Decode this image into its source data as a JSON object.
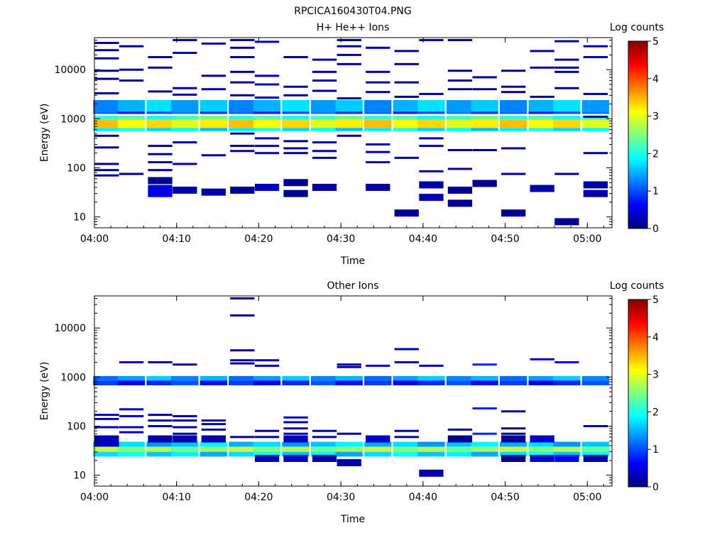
{
  "title": "RPCICA160430T04.PNG",
  "colormap": [
    "#00007f",
    "#0000ff",
    "#007fff",
    "#00ffff",
    "#7fff7f",
    "#ffff00",
    "#ff7f00",
    "#ff0000",
    "#7f0000"
  ],
  "chart_data": [
    {
      "type": "heatmap",
      "title": "H+ He++ Ions",
      "xlabel": "Time",
      "ylabel": "Energy (eV)",
      "x_ticks": [
        "04:00",
        "04:10",
        "04:20",
        "04:30",
        "04:40",
        "04:50",
        "05:00"
      ],
      "x_range": [
        "04:00",
        "05:03"
      ],
      "y_scale": "log",
      "y_range": [
        6,
        45000
      ],
      "y_ticks": [
        "10",
        "100",
        "1000",
        "10000"
      ],
      "colorbar": {
        "label": "Log counts",
        "range": [
          0,
          5
        ],
        "ticks": [
          "0",
          "1",
          "2",
          "3",
          "4",
          "5"
        ]
      },
      "time_bins": [
        "04:01.5",
        "04:04.5",
        "04:08",
        "04:11",
        "04:14.5",
        "04:18",
        "04:21",
        "04:24.5",
        "04:28",
        "04:31",
        "04:34.5",
        "04:38",
        "04:41",
        "04:44.5",
        "04:47.5",
        "04:51",
        "04:54.5",
        "04:57.5",
        "05:01"
      ],
      "bands": [
        {
          "e_low": 1400,
          "e_high": 2400,
          "level": 1.5
        },
        {
          "e_low": 1250,
          "e_high": 1400,
          "level": 1.0
        },
        {
          "e_low": 950,
          "e_high": 1150,
          "level": 2.2
        },
        {
          "e_low": 650,
          "e_high": 950,
          "level": 3.2
        },
        {
          "e_low": 560,
          "e_high": 650,
          "level": 1.8
        }
      ],
      "sparse": [
        {
          "col": 0,
          "e": [
            35000,
            25000,
            17000,
            9500,
            6500,
            3300,
            450,
            260,
            120,
            90,
            70
          ],
          "level": 0.1
        },
        {
          "col": 1,
          "e": [
            30000,
            10000,
            6000,
            75
          ],
          "level": 0.1
        },
        {
          "col": 2,
          "e": [
            18000,
            11000,
            3600,
            280,
            190,
            130,
            90,
            55
          ],
          "level": 0.1
        },
        {
          "col": 2,
          "e": [
            38,
            30
          ],
          "level": 0.5
        },
        {
          "col": 3,
          "e": [
            40000,
            22000,
            4200,
            3100,
            330,
            120,
            35
          ],
          "level": 0.2
        },
        {
          "col": 4,
          "e": [
            34000,
            7500,
            4000,
            180,
            32
          ],
          "level": 0.2
        },
        {
          "col": 5,
          "e": [
            40000,
            28000,
            18000,
            9000,
            5500,
            3000,
            500,
            280,
            220,
            35
          ],
          "level": 0.1
        },
        {
          "col": 6,
          "e": [
            37000,
            7500,
            5000,
            2700,
            400,
            280,
            200,
            40
          ],
          "level": 0.3
        },
        {
          "col": 7,
          "e": [
            18000,
            4500,
            3000,
            350,
            250,
            200,
            50,
            30
          ],
          "level": 0.1
        },
        {
          "col": 8,
          "e": [
            16000,
            9000,
            6000,
            3700,
            330,
            220,
            160,
            40
          ],
          "level": 0.2
        },
        {
          "col": 9,
          "e": [
            40000,
            30000,
            20000,
            13000,
            2600,
            450
          ],
          "level": 0.1
        },
        {
          "col": 10,
          "e": [
            28000,
            9000,
            5500,
            3500,
            300,
            210,
            130,
            40
          ],
          "level": 0.2
        },
        {
          "col": 11,
          "e": [
            24000,
            13000,
            5500,
            2800,
            160,
            12
          ],
          "level": 0.1
        },
        {
          "col": 12,
          "e": [
            40000,
            3200,
            400,
            280,
            85,
            45,
            25
          ],
          "level": 0.2
        },
        {
          "col": 13,
          "e": [
            40000,
            9500,
            6000,
            4000,
            230,
            95,
            35,
            19
          ],
          "level": 0.1
        },
        {
          "col": 14,
          "e": [
            7000,
            4000,
            230,
            48
          ],
          "level": 0.1
        },
        {
          "col": 15,
          "e": [
            9500,
            4500,
            3500,
            250,
            75,
            12
          ],
          "level": 0.1
        },
        {
          "col": 16,
          "e": [
            24000,
            11000,
            2800,
            38
          ],
          "level": 0.2
        },
        {
          "col": 17,
          "e": [
            38000,
            16000,
            11000,
            9000,
            4200,
            75,
            8
          ],
          "level": 0.1
        },
        {
          "col": 18,
          "e": [
            30000,
            18000,
            3200,
            1100,
            200,
            45,
            30
          ],
          "level": 0.2
        }
      ]
    },
    {
      "type": "heatmap",
      "title": "Other Ions",
      "xlabel": "Time",
      "ylabel": "Energy (eV)",
      "x_ticks": [
        "04:00",
        "04:10",
        "04:20",
        "04:30",
        "04:40",
        "04:50",
        "05:00"
      ],
      "x_range": [
        "04:00",
        "05:03"
      ],
      "y_scale": "log",
      "y_range": [
        6,
        45000
      ],
      "y_ticks": [
        "10",
        "100",
        "1000",
        "10000"
      ],
      "colorbar": {
        "label": "Log counts",
        "range": [
          0,
          5
        ],
        "ticks": [
          "0",
          "1",
          "2",
          "3",
          "4",
          "5"
        ]
      },
      "time_bins": [
        "04:01.5",
        "04:04.5",
        "04:08",
        "04:11",
        "04:14.5",
        "04:18",
        "04:21",
        "04:24.5",
        "04:28",
        "04:31",
        "04:34.5",
        "04:38",
        "04:41",
        "04:44.5",
        "04:47.5",
        "04:51",
        "04:54.5",
        "04:57.5",
        "05:01"
      ],
      "bands": [
        {
          "e_low": 850,
          "e_high": 1050,
          "level": 1.4
        },
        {
          "e_low": 680,
          "e_high": 850,
          "level": 0.8
        },
        {
          "e_low": 38,
          "e_high": 48,
          "level": 1.6
        },
        {
          "e_low": 30,
          "e_high": 38,
          "level": 2.6
        },
        {
          "e_low": 24,
          "e_high": 30,
          "level": 1.7
        }
      ],
      "sparse": [
        {
          "col": 0,
          "e": [
            170,
            140,
            95,
            55,
            45
          ],
          "level": 0.3
        },
        {
          "col": 1,
          "e": [
            2000,
            220,
            160,
            95,
            75
          ],
          "level": 0.3
        },
        {
          "col": 2,
          "e": [
            2000,
            170,
            130,
            100,
            55
          ],
          "level": 0.2
        },
        {
          "col": 3,
          "e": [
            1800,
            160,
            130,
            95,
            70,
            55
          ],
          "level": 0.2
        },
        {
          "col": 4,
          "e": [
            130,
            110,
            85,
            55
          ],
          "level": 0.2
        },
        {
          "col": 5,
          "e": [
            40000,
            18000,
            3500,
            2200,
            1900,
            60
          ],
          "level": 0.1
        },
        {
          "col": 6,
          "e": [
            2200,
            1700,
            80,
            60,
            22
          ],
          "level": 0.2
        },
        {
          "col": 7,
          "e": [
            150,
            120,
            90,
            70,
            55,
            22
          ],
          "level": 0.3
        },
        {
          "col": 8,
          "e": [
            80,
            60,
            22
          ],
          "level": 0.2
        },
        {
          "col": 9,
          "e": [
            1800,
            1600,
            70,
            18
          ],
          "level": 0.2
        },
        {
          "col": 10,
          "e": [
            1700,
            55
          ],
          "level": 0.4
        },
        {
          "col": 11,
          "e": [
            3700,
            2000,
            80,
            60
          ],
          "level": 0.2
        },
        {
          "col": 12,
          "e": [
            1700,
            11
          ],
          "level": 0.2
        },
        {
          "col": 13,
          "e": [
            85,
            55
          ],
          "level": 0.1
        },
        {
          "col": 14,
          "e": [
            1800,
            230,
            70
          ],
          "level": 0.8
        },
        {
          "col": 15,
          "e": [
            200,
            90,
            70,
            55,
            22
          ],
          "level": 0.1
        },
        {
          "col": 16,
          "e": [
            2300,
            55,
            22
          ],
          "level": 0.4
        },
        {
          "col": 17,
          "e": [
            2000,
            22
          ],
          "level": 0.6
        },
        {
          "col": 18,
          "e": [
            100,
            22
          ],
          "level": 0.2
        }
      ]
    }
  ]
}
